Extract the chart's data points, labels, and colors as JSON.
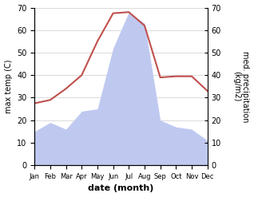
{
  "months": [
    "Jan",
    "Feb",
    "Mar",
    "Apr",
    "May",
    "Jun",
    "Jul",
    "Aug",
    "Sep",
    "Oct",
    "Nov",
    "Dec"
  ],
  "temperature": [
    27.5,
    29.0,
    34.0,
    40.0,
    55.0,
    67.5,
    68.0,
    62.0,
    39.0,
    39.5,
    39.5,
    33.0
  ],
  "precipitation": [
    15,
    19,
    16,
    24,
    25,
    52,
    68,
    63,
    20,
    17,
    16,
    11
  ],
  "temp_color": "#c0504d",
  "precip_fill_color": "#bfc9f0",
  "ylabel_left": "max temp (C)",
  "ylabel_right": "med. precipitation\n(kg/m2)",
  "xlabel": "date (month)",
  "ylim": [
    0,
    70
  ],
  "yticks": [
    0,
    10,
    20,
    30,
    40,
    50,
    60,
    70
  ],
  "background_color": "#ffffff"
}
